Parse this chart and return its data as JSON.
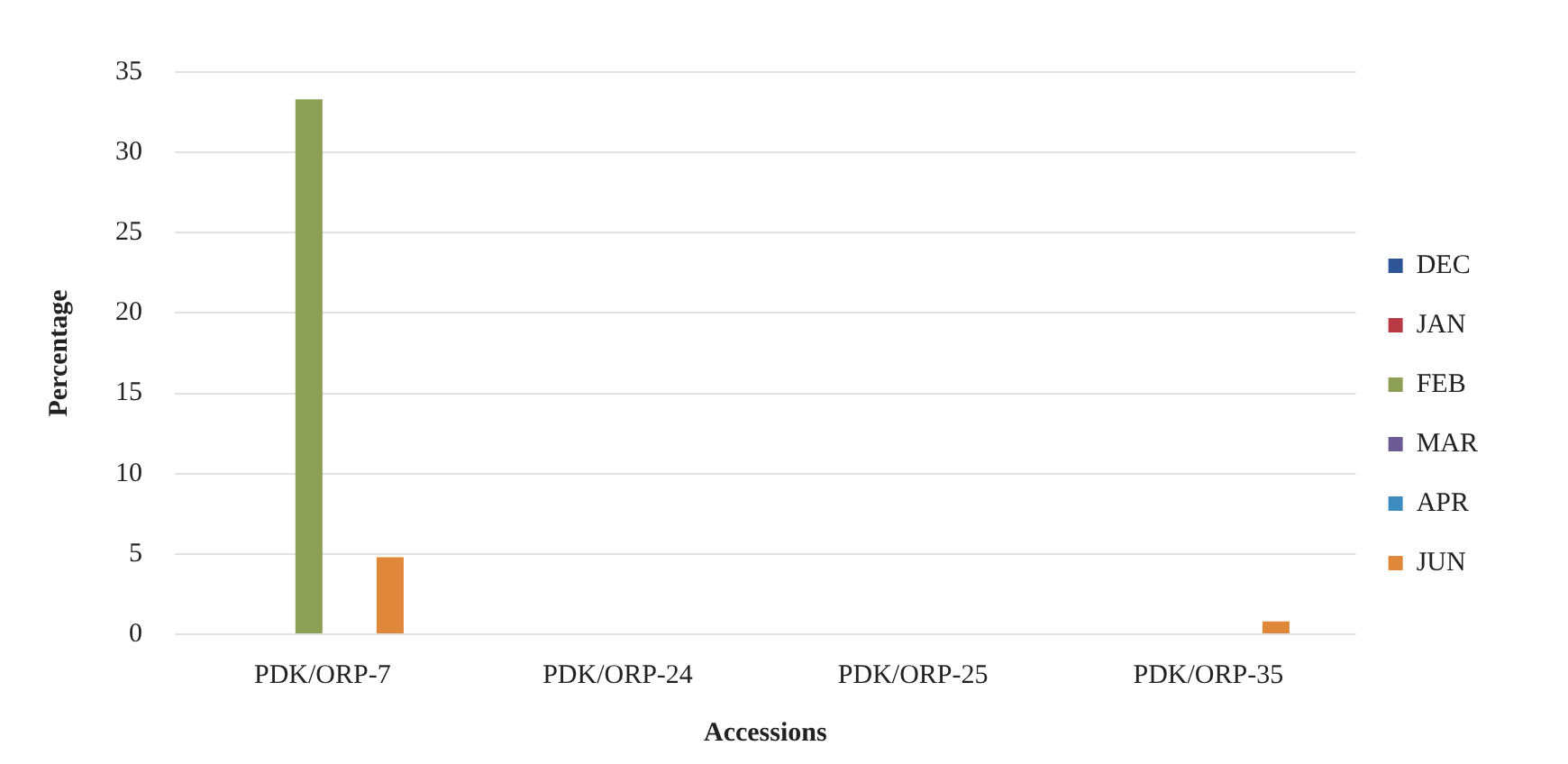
{
  "chart_data": {
    "type": "bar",
    "xlabel": "Accessions",
    "ylabel": "Percentage",
    "categories": [
      "PDK/ORP-7",
      "PDK/ORP-24",
      "PDK/ORP-25",
      "PDK/ORP-35"
    ],
    "series": [
      {
        "name": "DEC",
        "color": "#2e5597",
        "values": [
          0,
          0,
          0,
          0
        ]
      },
      {
        "name": "JAN",
        "color": "#b83a45",
        "values": [
          0,
          0,
          0,
          0
        ]
      },
      {
        "name": "FEB",
        "color": "#8d9e55",
        "values": [
          33.3,
          0,
          0,
          0
        ]
      },
      {
        "name": "MAR",
        "color": "#6b5a94",
        "values": [
          0,
          0,
          0,
          0
        ]
      },
      {
        "name": "APR",
        "color": "#3d8cbf",
        "values": [
          0,
          0,
          0,
          0
        ]
      },
      {
        "name": "JUN",
        "color": "#e0883a",
        "values": [
          4.8,
          0,
          0,
          0.8
        ]
      }
    ],
    "ylim": [
      0,
      35
    ],
    "yticks": [
      0,
      5,
      10,
      15,
      20,
      25,
      30,
      35
    ],
    "grid": "y",
    "legend": "right"
  }
}
